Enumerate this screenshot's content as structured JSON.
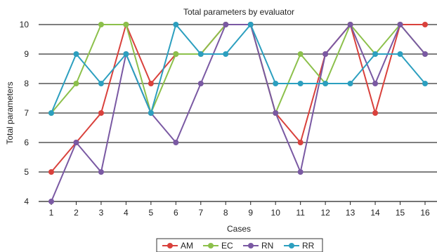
{
  "chart_data": {
    "type": "line",
    "title": "Total parameters by evaluator",
    "xlabel": "Cases",
    "ylabel": "Total parameters",
    "x": [
      1,
      2,
      3,
      4,
      5,
      6,
      7,
      8,
      9,
      10,
      11,
      12,
      13,
      14,
      15,
      16
    ],
    "ylim": [
      4,
      10
    ],
    "yticks": [
      4,
      5,
      6,
      7,
      8,
      9,
      10
    ],
    "grid": "horizontal",
    "legend": "bottom",
    "series": [
      {
        "name": "AM",
        "color": "#d9413c",
        "values": [
          5,
          6,
          7,
          10,
          8,
          9,
          9,
          10,
          10,
          7,
          6,
          9,
          10,
          7,
          10,
          10
        ]
      },
      {
        "name": "EC",
        "color": "#8cc04b",
        "values": [
          7,
          8,
          10,
          10,
          7,
          9,
          9,
          10,
          10,
          7,
          9,
          8,
          10,
          9,
          10,
          9
        ]
      },
      {
        "name": "RN",
        "color": "#7a59a3",
        "values": [
          4,
          6,
          5,
          9,
          7,
          6,
          8,
          10,
          10,
          7,
          5,
          9,
          10,
          8,
          10,
          9
        ]
      },
      {
        "name": "RR",
        "color": "#2c9fbf",
        "values": [
          7,
          9,
          8,
          9,
          7,
          10,
          9,
          9,
          10,
          8,
          8,
          8,
          8,
          9,
          9,
          8
        ]
      }
    ]
  }
}
